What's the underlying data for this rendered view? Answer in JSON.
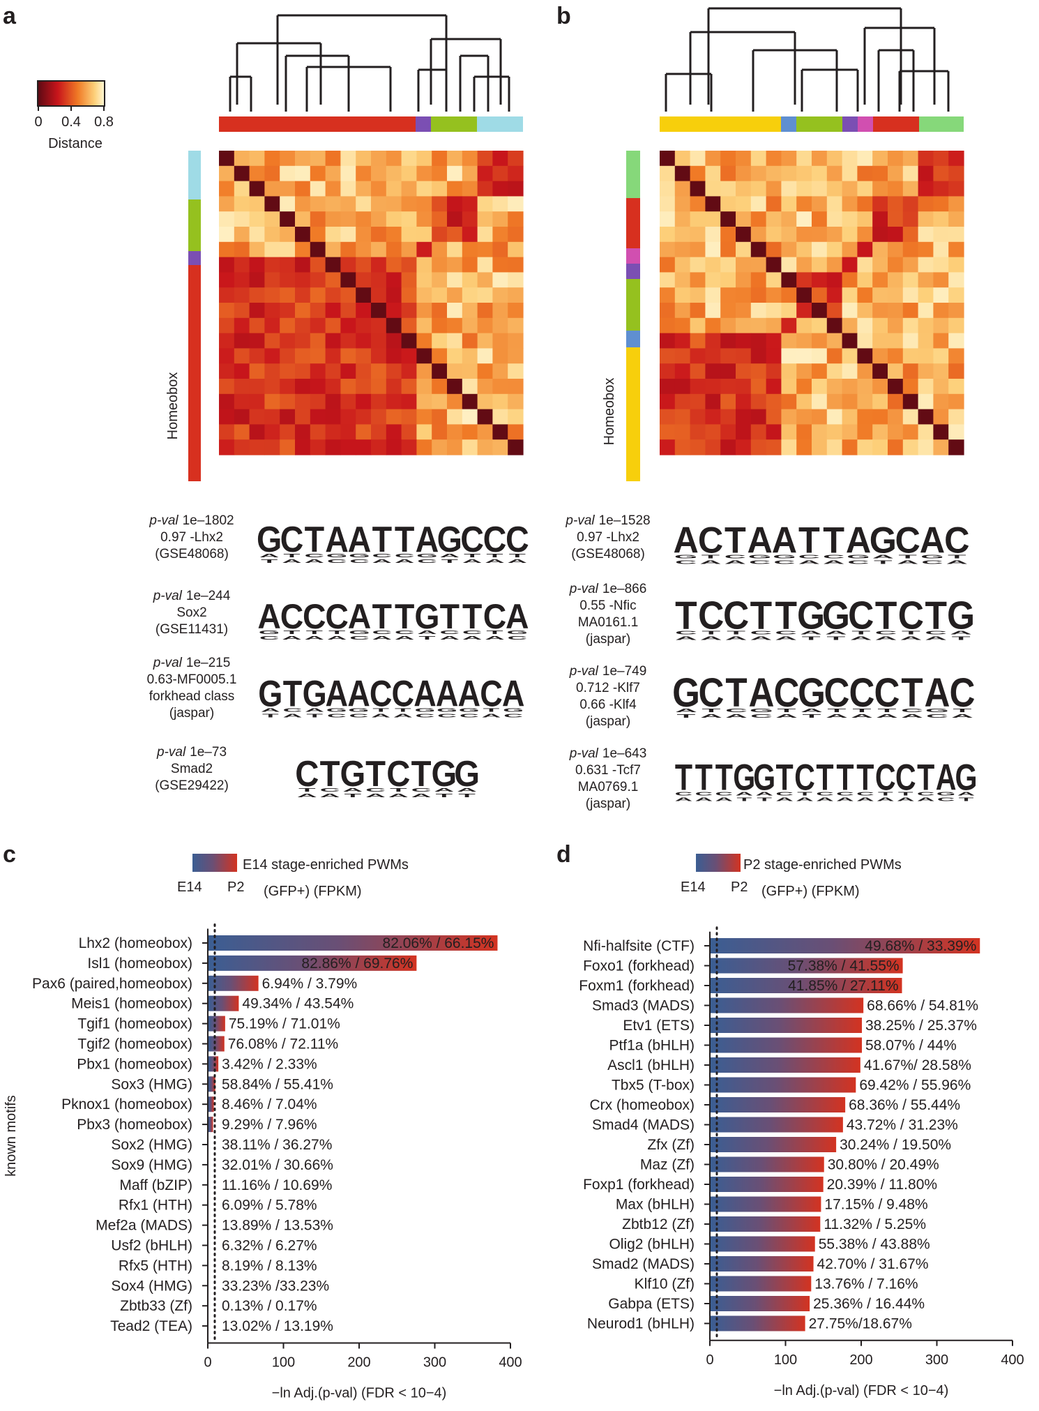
{
  "panels": {
    "a": "a",
    "b": "b",
    "c": "c",
    "d": "d"
  },
  "colors": {
    "red": "#d7301f",
    "purple": "#7b4fb3",
    "lime": "#95c11f",
    "cyan": "#9fdbe6",
    "yellow": "#f7cf0c",
    "blue": "#5f8fd1",
    "magenta": "#d14fb0",
    "green": "#86d87a",
    "bar_start": "#3b5e93",
    "bar_end": "#d33321"
  },
  "legend": {
    "distance_label": "Distance",
    "distance_ticks": [
      "0",
      "0.4",
      "0.8"
    ]
  },
  "heatmap_a": {
    "cluster_label": "Homeobox"
  },
  "heatmap_b": {
    "cluster_label": "Homeobox"
  },
  "motifs_a": [
    {
      "pval": "1e–1802",
      "lines": [
        "0.97 -Lhx2",
        "(GSE48068)"
      ],
      "consensus": "GCTAATTAGCCC"
    },
    {
      "pval": "1e–244",
      "lines": [
        "Sox2",
        "(GSE11431)"
      ],
      "consensus": "ACCCATTGTTCA"
    },
    {
      "pval": "1e–215",
      "lines": [
        "0.63-MF0005.1",
        "forkhead class",
        "(jaspar)"
      ],
      "consensus": "GTGAACCAAACA"
    },
    {
      "pval": "1e–73",
      "lines": [
        "Smad2",
        "(GSE29422)"
      ],
      "consensus": "CTGTCTGG"
    }
  ],
  "motifs_b": [
    {
      "pval": "1e–1528",
      "lines": [
        "0.97 -Lhx2",
        "(GSE48068)"
      ],
      "consensus": "ACTAATTAGCAC"
    },
    {
      "pval": "1e–866",
      "lines": [
        "0.55 -Nfic",
        "MA0161.1",
        "(jaspar)"
      ],
      "consensus": "TCCTTGGCTCTG"
    },
    {
      "pval": "1e–749",
      "lines": [
        "0.712 -Klf7",
        "0.66 -Klf4",
        "(jaspar)"
      ],
      "consensus": "GCTACGCCCTAC"
    },
    {
      "pval": "1e–643",
      "lines": [
        "0.631 -Tcf7",
        "MA0769.1",
        "(jaspar)"
      ],
      "consensus": "TTTGGTCTTTCCTAG"
    }
  ],
  "pval_prefix": "p-val",
  "chart_data": [
    {
      "type": "bar",
      "orientation": "horizontal",
      "title": "E14 stage-enriched PWMs",
      "gradient_labels": [
        "E14",
        "P2"
      ],
      "subtitle": "(GFP+) (FPKM)",
      "ylabel": "known motifs",
      "xlabel": "−ln Adj.(p-val) (FDR < 10−4)",
      "xlim": [
        0,
        400
      ],
      "xticks": [
        0,
        100,
        200,
        300,
        400
      ],
      "threshold_line": 9.2,
      "categories": [
        "Lhx2 (homeobox)",
        "Isl1 (homeobox)",
        "Pax6 (paired,homeobox)",
        "Meis1 (homeobox)",
        "Tgif1 (homeobox)",
        "Tgif2 (homeobox)",
        "Pbx1 (homeobox)",
        "Sox3 (HMG)",
        "Pknox1 (homeobox)",
        "Pbx3 (homeobox)",
        "Sox2 (HMG)",
        "Sox9 (HMG)",
        "Maff (bZIP)",
        "Rfx1 (HTH)",
        "Mef2a (MADS)",
        "Usf2 (bHLH)",
        "Rfx5 (HTH)",
        "Sox4 (HMG)",
        "Zbtb33 (Zf)",
        "Tead2 (TEA)"
      ],
      "values": [
        382,
        275,
        66,
        40,
        22,
        21,
        13,
        9,
        7,
        6,
        0,
        0,
        0,
        0,
        0,
        0,
        0,
        0,
        0,
        0
      ],
      "labels": [
        "82.06% / 66.15%",
        "82.86% / 69.76%",
        "6.94% / 3.79%",
        "49.34% / 43.54%",
        "75.19% / 71.01%",
        "76.08% / 72.11%",
        "3.42% / 2.33%",
        "58.84% / 55.41%",
        "8.46% / 7.04%",
        "9.29% / 7.96%",
        "38.11% / 36.27%",
        "32.01% / 30.66%",
        "11.16% / 10.69%",
        "6.09% / 5.78%",
        "13.89% / 13.53%",
        "6.32% / 6.27%",
        "8.19% / 8.13%",
        "33.23% /33.23%",
        "0.13% / 0.17%",
        "13.02% / 13.19%"
      ]
    },
    {
      "type": "bar",
      "orientation": "horizontal",
      "title": "P2 stage-enriched PWMs",
      "gradient_labels": [
        "E14",
        "P2"
      ],
      "subtitle": "(GFP+) (FPKM)",
      "ylabel": "",
      "xlabel": "−ln Adj.(p-val) (FDR < 10−4)",
      "xlim": [
        0,
        400
      ],
      "xticks": [
        0,
        100,
        200,
        300,
        400
      ],
      "threshold_line": 9.2,
      "categories": [
        "Nfi-halfsite (CTF)",
        "Foxo1 (forkhead)",
        "Foxm1 (forkhead)",
        "Smad3 (MADS)",
        "Etv1 (ETS)",
        "Ptf1a (bHLH)",
        "Ascl1 (bHLH)",
        "Tbx5 (T-box)",
        "Crx (homeobox)",
        "Smad4 (MADS)",
        "Zfx (Zf)",
        "Maz (Zf)",
        "Foxp1 (forkhead)",
        "Max (bHLH)",
        "Zbtb12 (Zf)",
        "Olig2 (bHLH)",
        "Smad2 (MADS)",
        "Klf10 (Zf)",
        "Gabpa (ETS)",
        "Neurod1 (bHLH)"
      ],
      "values": [
        356,
        254,
        253,
        202,
        200,
        200,
        198,
        192,
        178,
        175,
        166,
        150,
        149,
        146,
        145,
        138,
        136,
        133,
        131,
        125
      ],
      "labels": [
        "49.68% / 33.39%",
        "57.38% / 41.55%",
        "41.85% / 27.11%",
        "68.66% / 54.81%",
        "38.25% / 25.37%",
        "58.07% / 44%",
        "41.67%/ 28.58%",
        "69.42% / 55.96%",
        "68.36% / 55.44%",
        "43.72% / 31.23%",
        "30.24% / 19.50%",
        "30.80% / 20.49%",
        "20.39% / 11.80%",
        "17.15% / 9.48%",
        "11.32% / 5.25%",
        "55.38% / 43.88%",
        "42.70% / 31.67%",
        "13.76% / 7.16%",
        "25.36% / 16.44%",
        "27.75%/18.67%"
      ]
    }
  ]
}
